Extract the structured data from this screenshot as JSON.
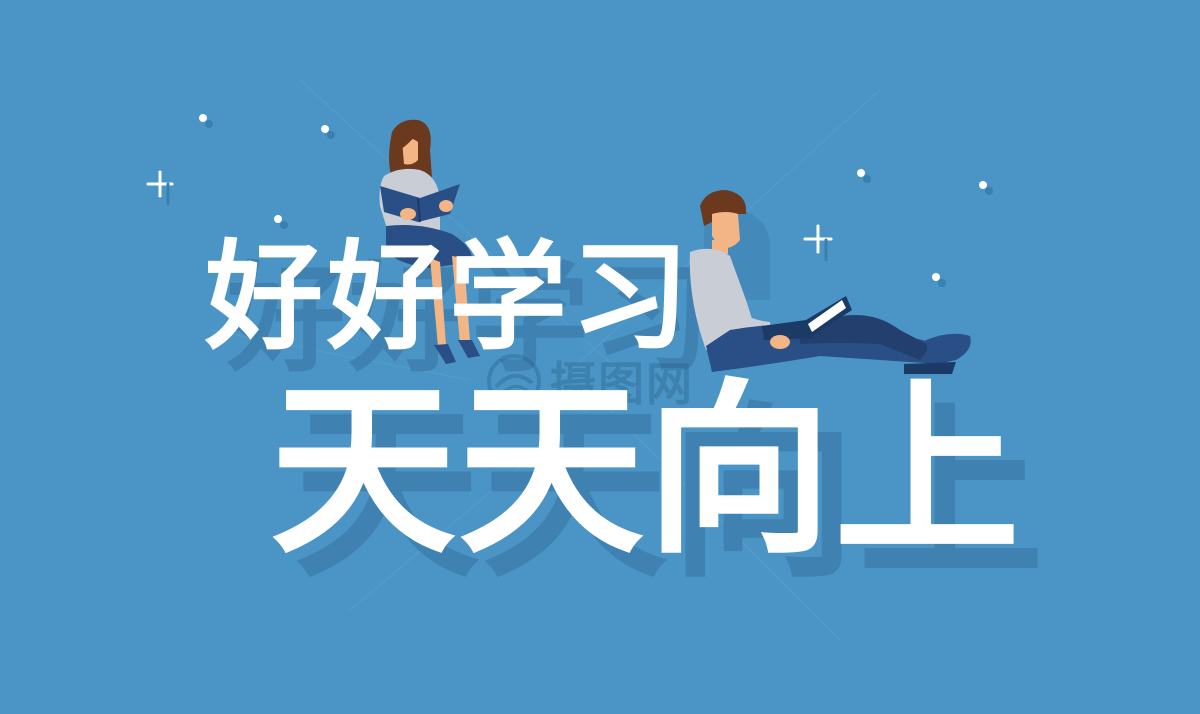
{
  "headline": {
    "line1": "好好学习",
    "line2": "天天向上"
  },
  "watermark": {
    "text": "摄图网"
  },
  "colors": {
    "background": "#4a95c6",
    "headline": "#ffffff",
    "headline_shadow": "#3f82b2",
    "figure_dark": "#2a4f86",
    "figure_shirt": "#c9ced6",
    "hair": "#6b3a1e",
    "skin": "#f2b583"
  },
  "icons": [
    "sparkle-plus-icon",
    "sparkle-dot-icon",
    "logo-watermark-icon"
  ]
}
